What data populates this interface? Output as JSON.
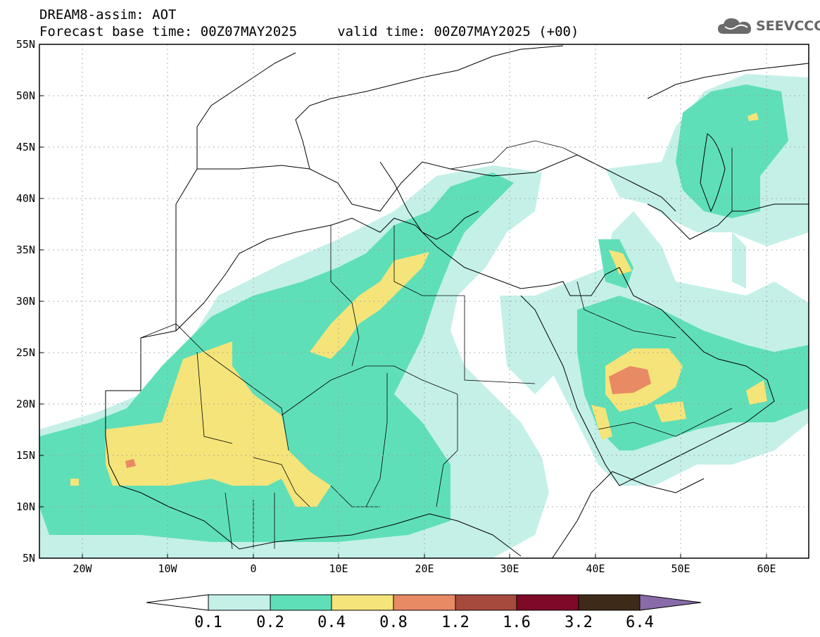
{
  "header": {
    "line1": "DREAM8-assim: AOT",
    "line2": "Forecast base time: 00Z07MAY2025     valid time: 00Z07MAY2025 (+00)"
  },
  "logo": {
    "text": "SEEVCCC",
    "icon": "cloud-icon"
  },
  "map": {
    "lon_range": [
      -25,
      65
    ],
    "lat_range": [
      5,
      55
    ],
    "lat_ticks": [
      "55N",
      "50N",
      "45N",
      "40N",
      "35N",
      "30N",
      "25N",
      "20N",
      "15N",
      "10N",
      "5N"
    ],
    "lon_ticks": [
      "20W",
      "10W",
      "0",
      "10E",
      "20E",
      "30E",
      "40E",
      "50E",
      "60E"
    ],
    "gridlines": "dotted"
  },
  "colorbar": {
    "labels": [
      "0.1",
      "0.2",
      "0.4",
      "0.8",
      "1.2",
      "1.6",
      "3.2",
      "6.4"
    ],
    "colors": [
      "#ffffff",
      "#c4f0e8",
      "#5fdfb8",
      "#f5e47a",
      "#e88a64",
      "#a64a3e",
      "#7e0a28",
      "#3e2a18",
      "#8a6aa8"
    ]
  }
}
